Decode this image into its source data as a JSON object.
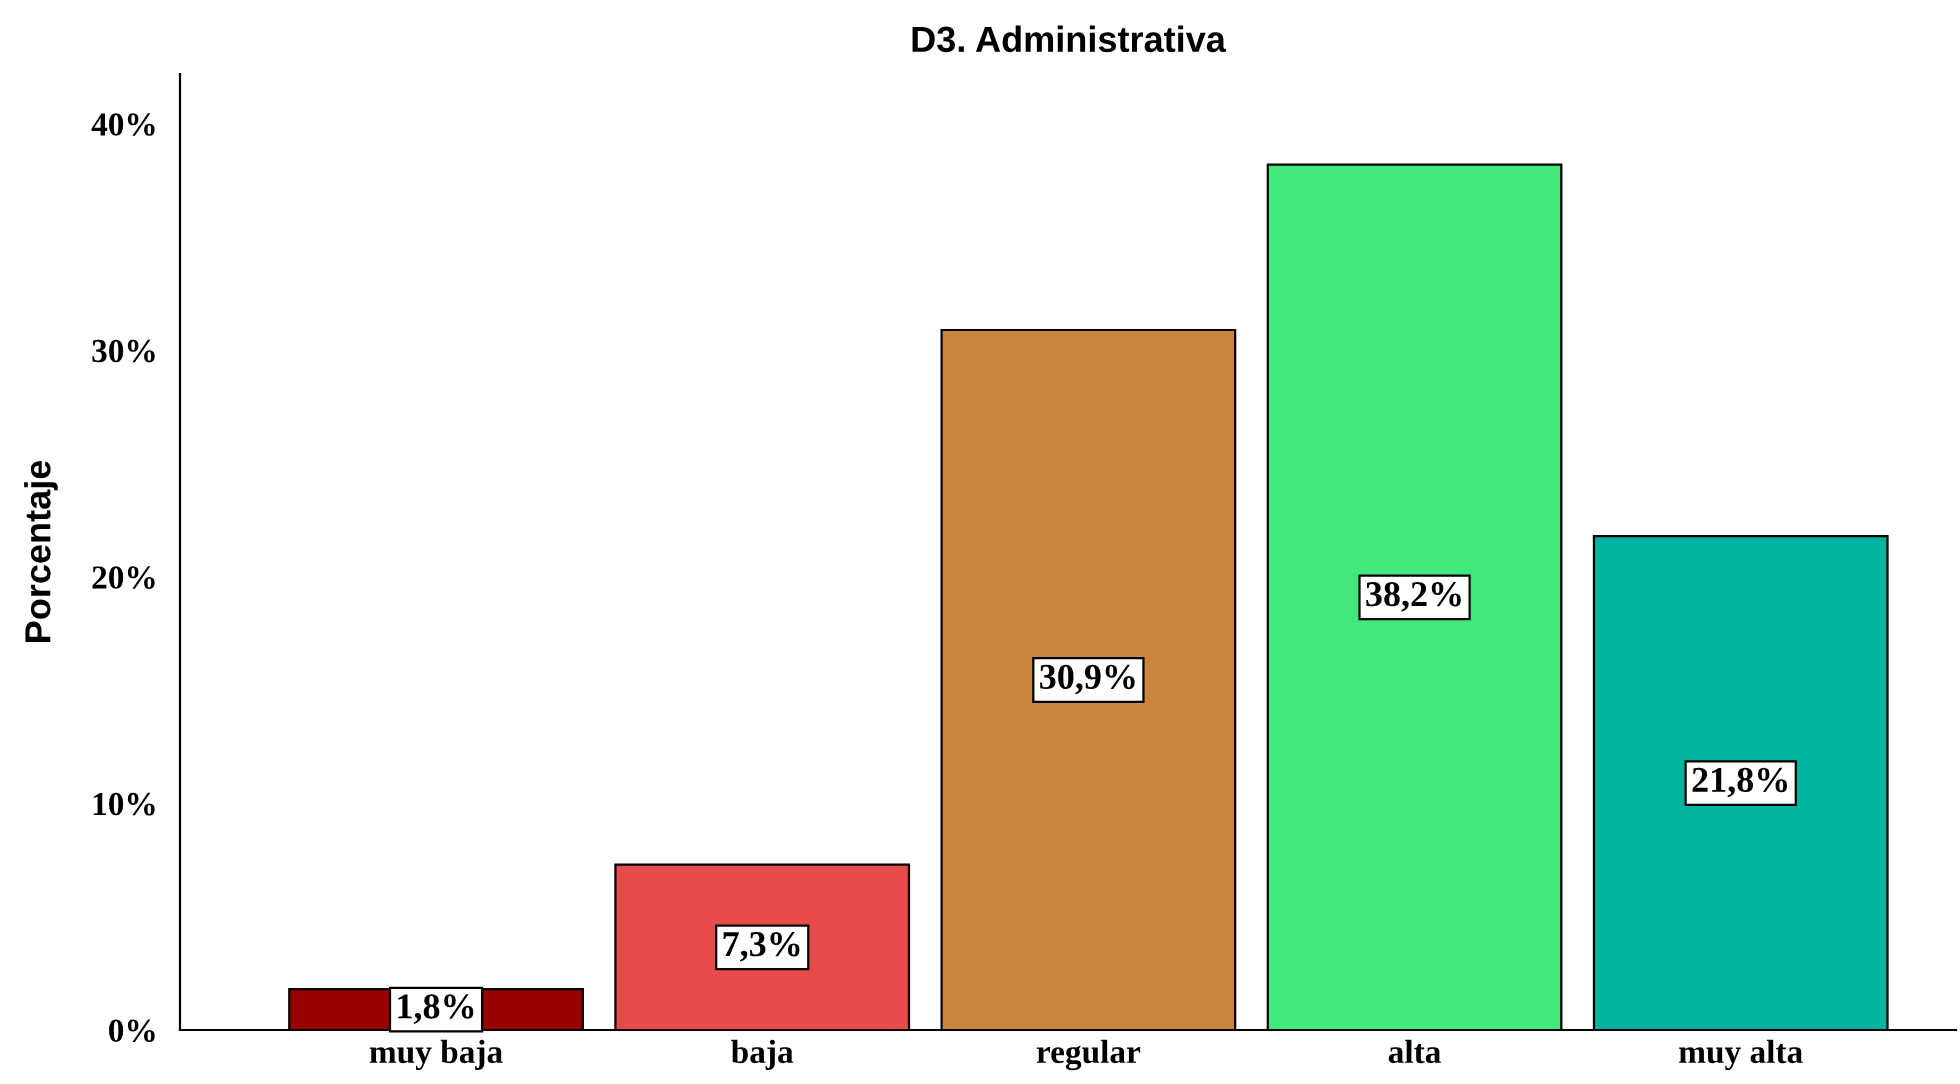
{
  "chart_data": {
    "type": "bar",
    "title": "D3. Administrativa",
    "ylabel": "Porcentaje",
    "categories": [
      "muy baja",
      "baja",
      "regular",
      "alta",
      "muy alta"
    ],
    "values": [
      1.8,
      7.3,
      30.9,
      38.2,
      21.8
    ],
    "colors": [
      "#990000",
      "#e84b4b",
      "#cc853f",
      "#42e87c",
      "#00b39e"
    ],
    "value_labels": [
      "1,8%",
      "7,3%",
      "30,9%",
      "38,2%",
      "21,8%"
    ],
    "ylim": [
      0,
      42.2
    ],
    "yticks": [
      {
        "value": 0,
        "label": "0%"
      },
      {
        "value": 10,
        "label": "10%"
      },
      {
        "value": 20,
        "label": "20%"
      },
      {
        "value": 30,
        "label": "30%"
      },
      {
        "value": 40,
        "label": "40%"
      }
    ],
    "grid": false,
    "legend": false
  }
}
